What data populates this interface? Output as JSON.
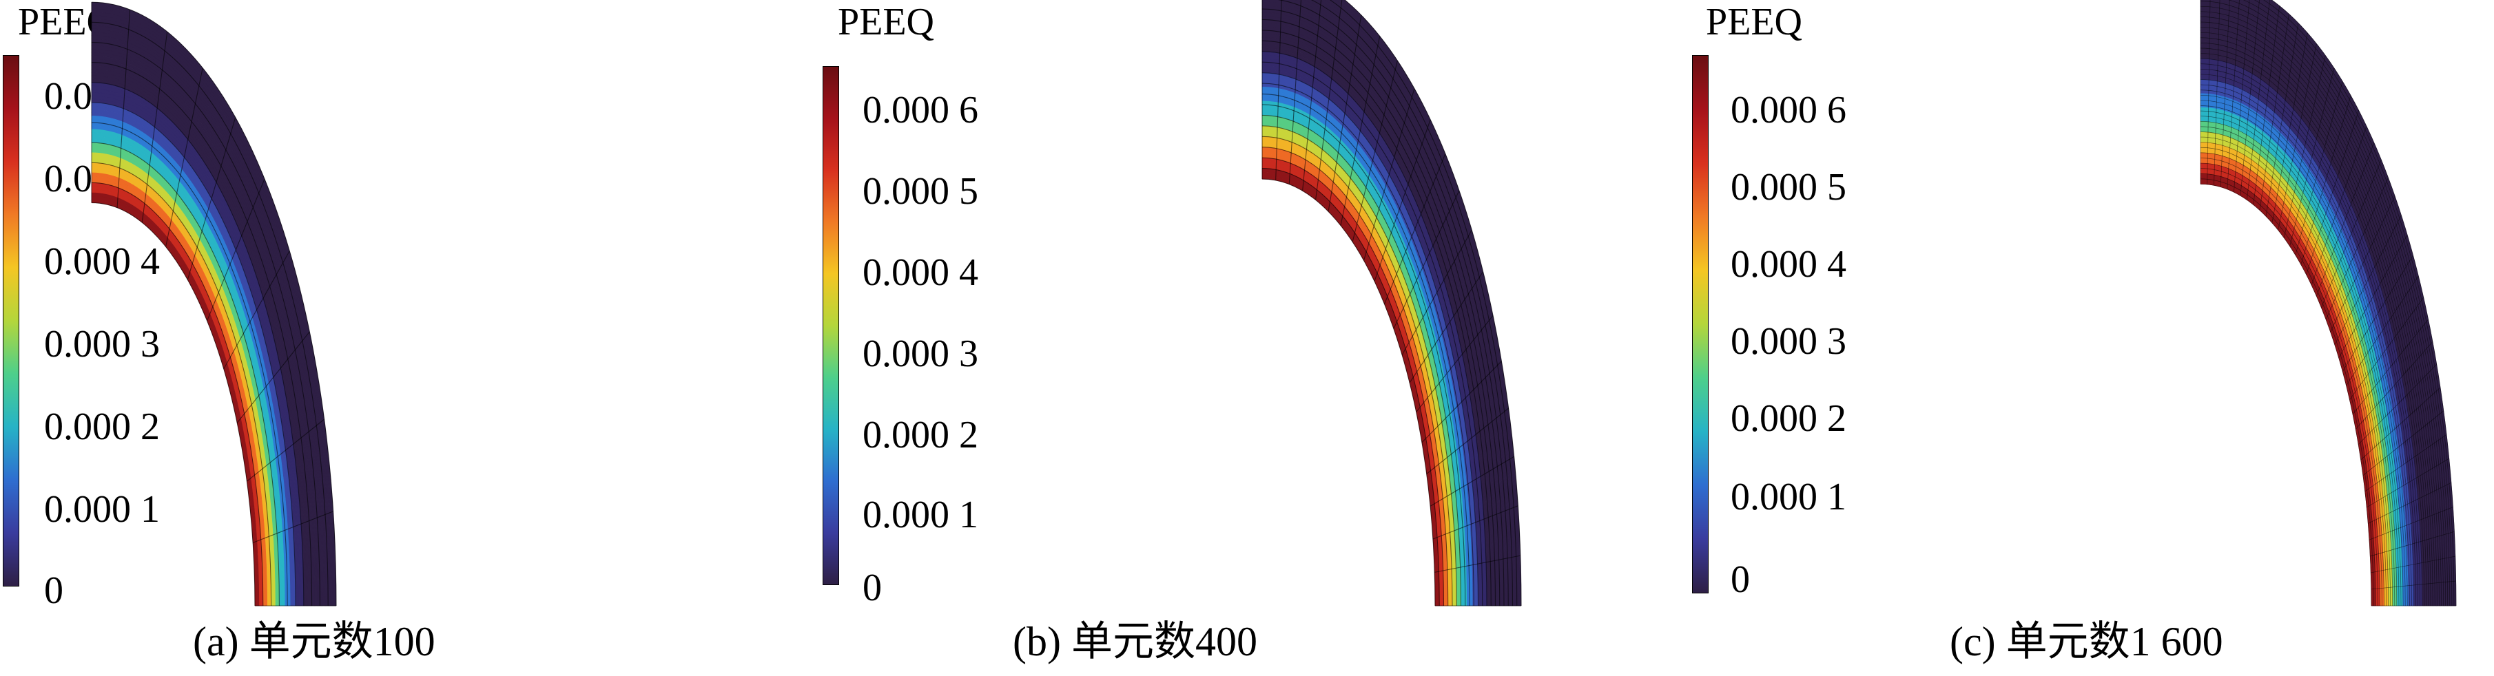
{
  "legend_title": "PEEQ",
  "colorbar_ticks": [
    "0.000 6",
    "0.000 5",
    "0.000 4",
    "0.000 3",
    "0.000 2",
    "0.000 1",
    "0"
  ],
  "colorbar_max_label": "",
  "colors": {
    "background_field": "#2e1f45",
    "mesh_line": "#000000",
    "band_peak": "#a5121b",
    "band_mid": "#f4c623",
    "band_low": "#27b3c6"
  },
  "panels": [
    {
      "caption": "(a) 单元数100",
      "elements": 100,
      "mesh_radial_divisions": 10,
      "mesh_circumferential_divisions": 10
    },
    {
      "caption": "(b) 单元数400",
      "elements": 400,
      "mesh_radial_divisions": 20,
      "mesh_circumferential_divisions": 20
    },
    {
      "caption": "(c) 单元数1 600",
      "elements": 1600,
      "mesh_radial_divisions": 40,
      "mesh_circumferential_divisions": 40
    }
  ]
}
